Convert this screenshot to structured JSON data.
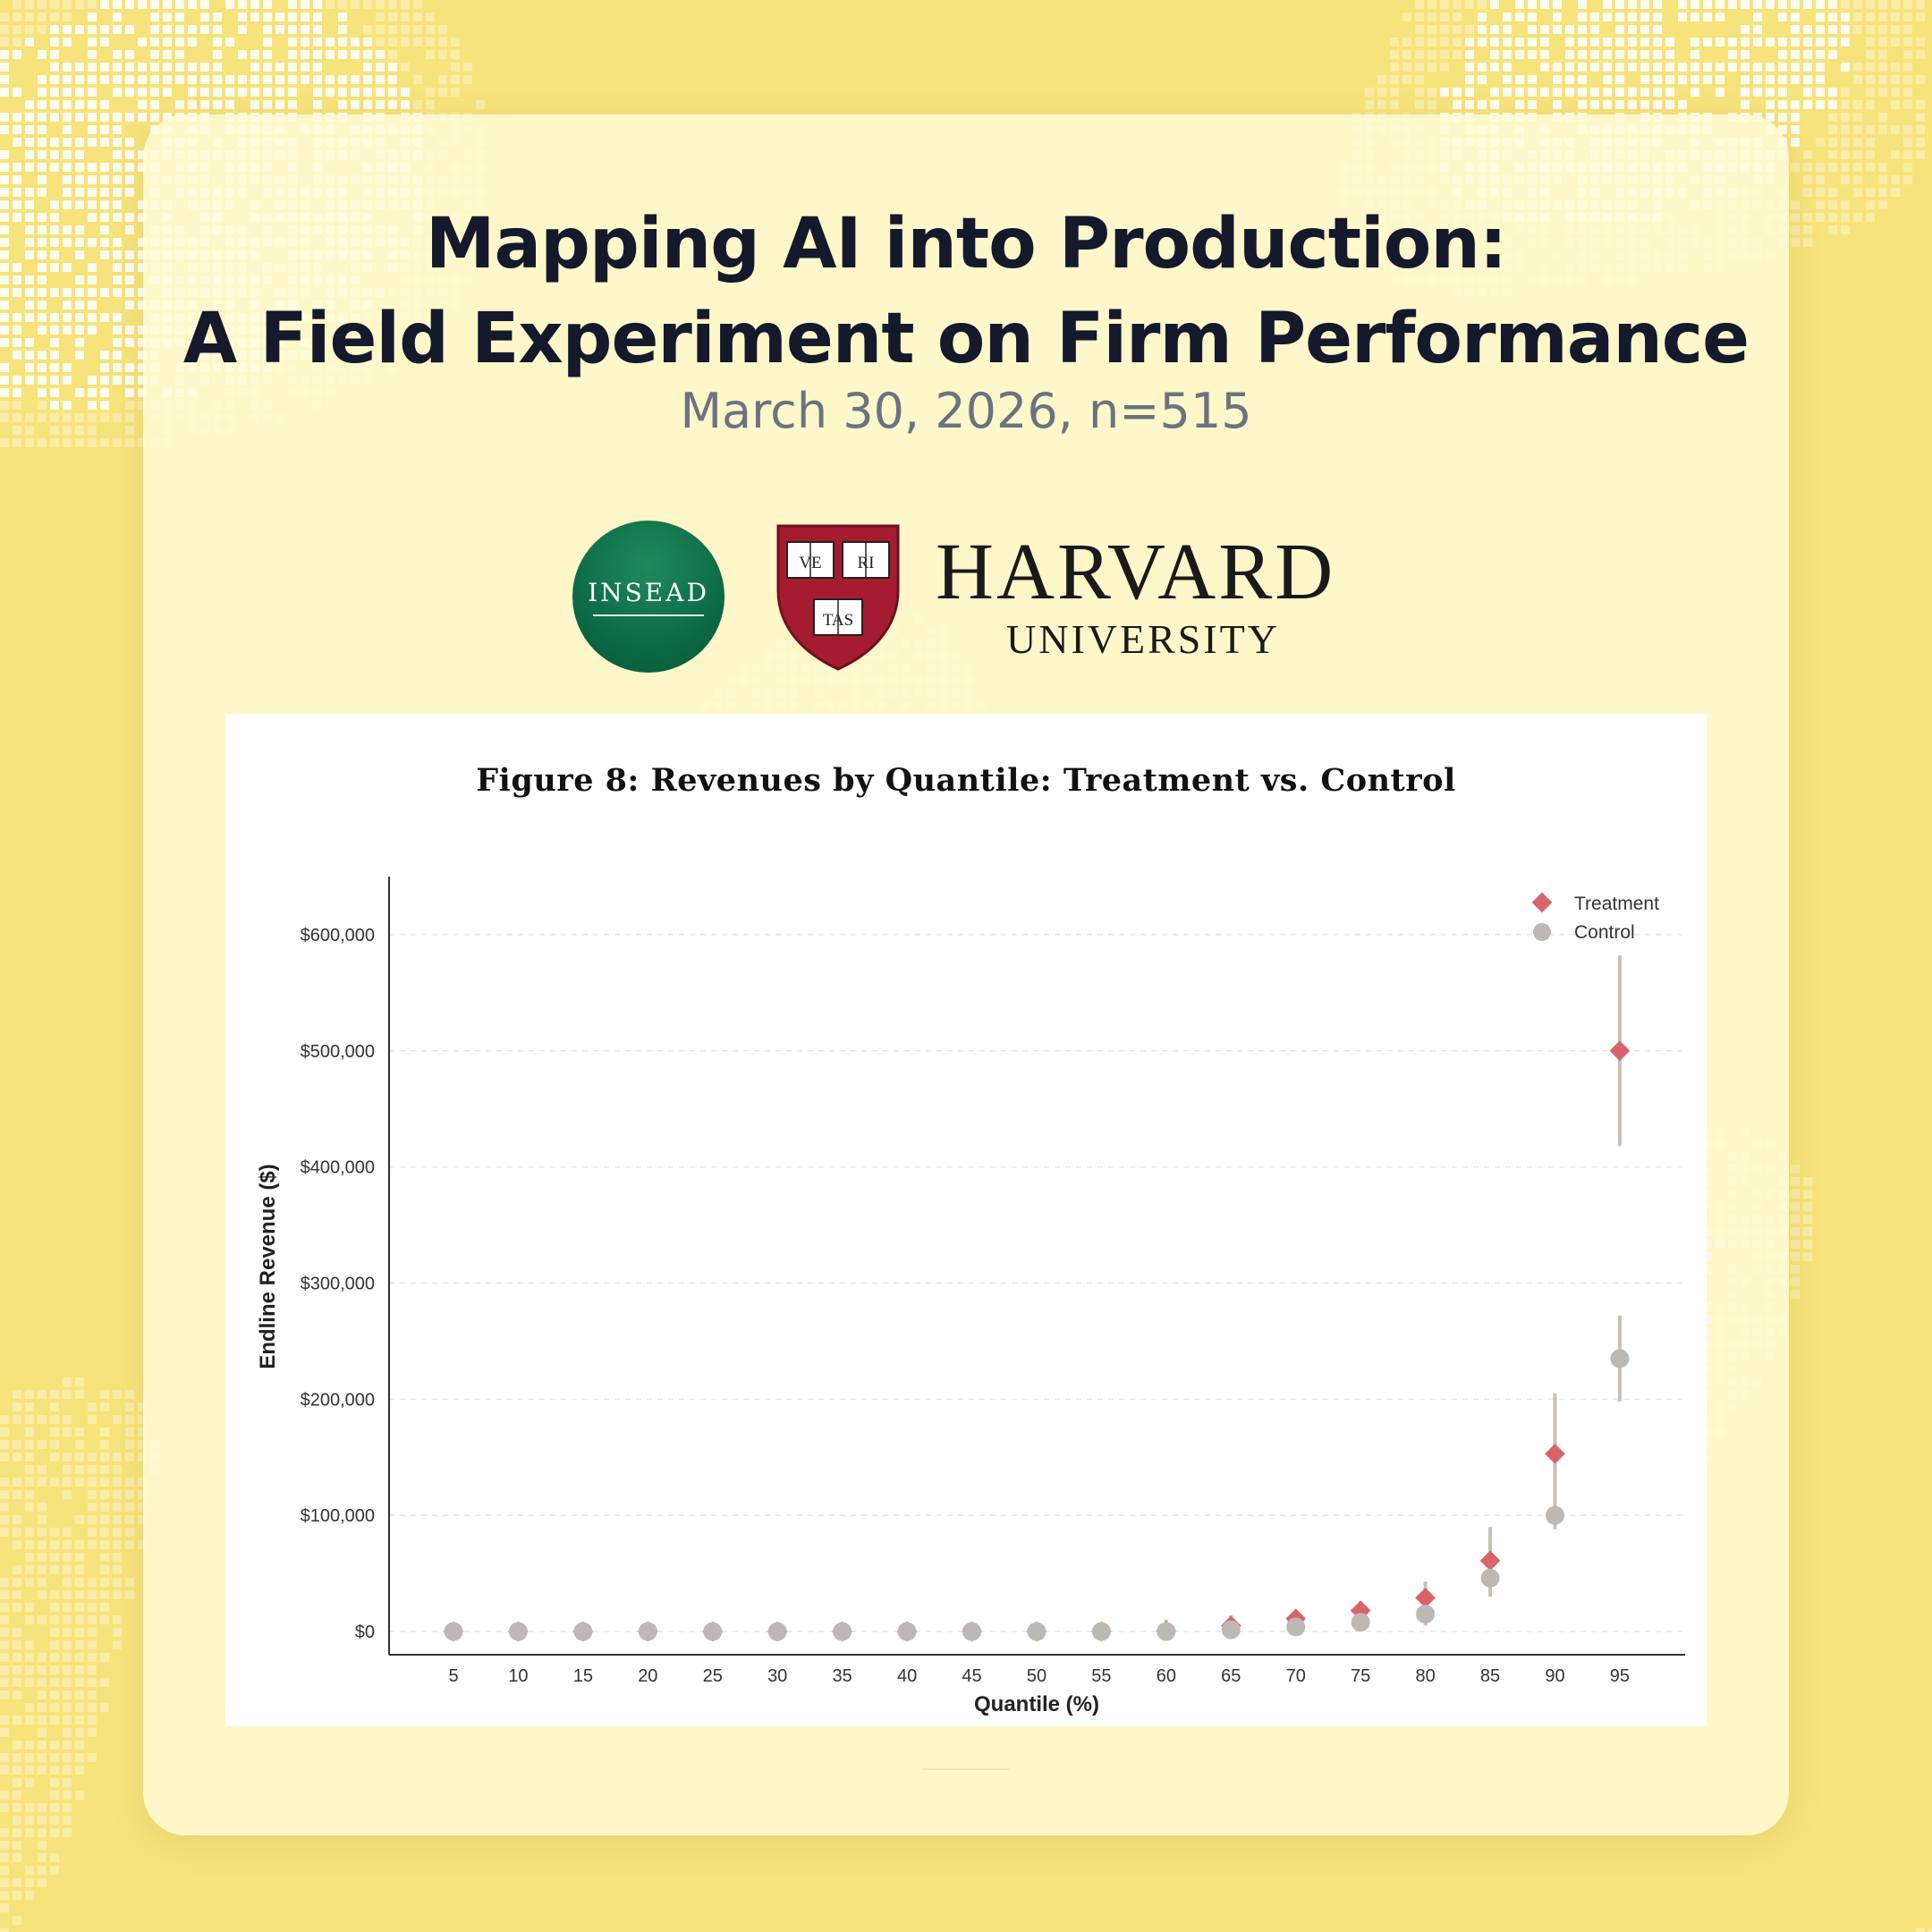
{
  "header": {
    "title_line1": "Mapping AI into Production:",
    "title_line2": "A Field Experiment on Firm Performance",
    "subtitle": "March 30, 2026, n=515"
  },
  "logos": {
    "insead": "INSEAD",
    "harvard": "HARVARD",
    "harvard_sub": "UNIVERSITY",
    "shield_books": [
      "VE",
      "RI",
      "TAS"
    ]
  },
  "colors": {
    "background": "#f7e37c",
    "treatment": "#d9636a",
    "control": "#bdb8b3",
    "error_bar": "#c6c0ba",
    "title_text": "#14192b",
    "subtitle_text": "#6b7381",
    "insead_green": "#0c6a45",
    "harvard_crimson": "#a51c30"
  },
  "chart_data": {
    "type": "scatter",
    "title": "Figure 8: Revenues by Quantile: Treatment vs. Control",
    "xlabel": "Quantile (%)",
    "ylabel": "Endline Revenue ($)",
    "x": [
      5,
      10,
      15,
      20,
      25,
      30,
      35,
      40,
      45,
      50,
      55,
      60,
      65,
      70,
      75,
      80,
      85,
      90,
      95
    ],
    "ylim": [
      -20000,
      650000
    ],
    "yticks": [
      0,
      100000,
      200000,
      300000,
      400000,
      500000,
      600000
    ],
    "ytick_labels": [
      "$0",
      "$100,000",
      "$200,000",
      "$300,000",
      "$400,000",
      "$500,000",
      "$600,000"
    ],
    "grid": "horizontal dashed",
    "legend_position": "top-right",
    "series": [
      {
        "name": "Treatment",
        "marker": "diamond",
        "values": [
          0,
          0,
          0,
          0,
          0,
          0,
          0,
          0,
          0,
          0,
          0,
          500,
          5000,
          11000,
          18000,
          29000,
          61000,
          153000,
          500000
        ],
        "ci_low": [
          null,
          null,
          null,
          null,
          null,
          null,
          null,
          null,
          null,
          null,
          null,
          null,
          null,
          null,
          null,
          5000,
          30000,
          88000,
          418000
        ],
        "ci_high": [
          null,
          null,
          null,
          null,
          null,
          null,
          null,
          null,
          null,
          null,
          8000,
          10000,
          14000,
          18000,
          26000,
          43000,
          90000,
          205000,
          582000
        ]
      },
      {
        "name": "Control",
        "marker": "circle",
        "values": [
          0,
          0,
          0,
          0,
          0,
          0,
          0,
          0,
          0,
          0,
          0,
          0,
          1500,
          4000,
          8000,
          15000,
          46000,
          100000,
          235000
        ],
        "ci_low": [
          null,
          null,
          null,
          null,
          null,
          null,
          null,
          null,
          null,
          null,
          null,
          null,
          null,
          null,
          null,
          null,
          null,
          null,
          198000
        ],
        "ci_high": [
          null,
          null,
          null,
          null,
          null,
          null,
          null,
          null,
          null,
          null,
          null,
          null,
          null,
          null,
          null,
          null,
          null,
          null,
          272000
        ]
      }
    ]
  }
}
